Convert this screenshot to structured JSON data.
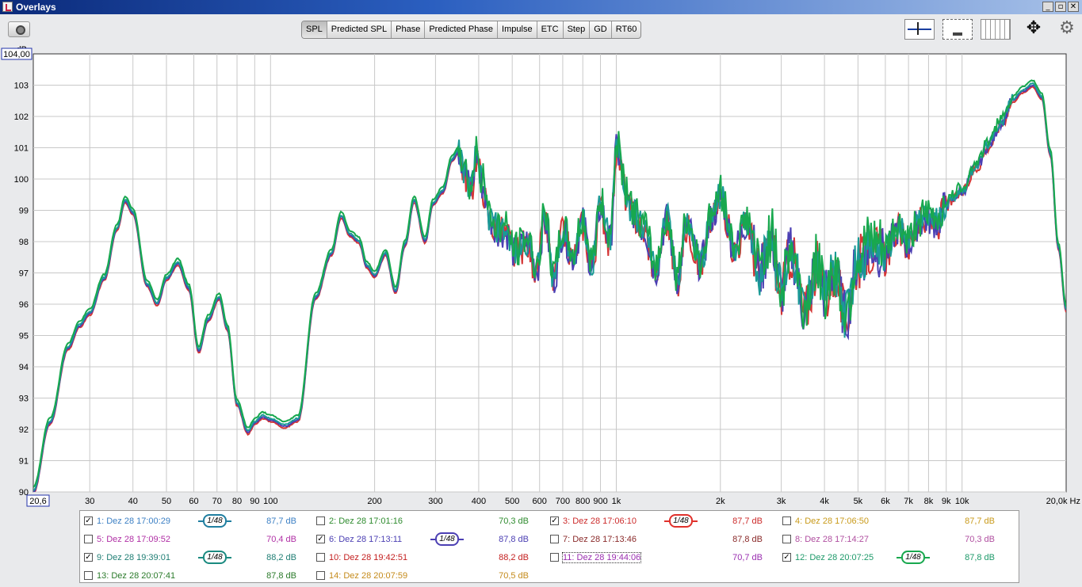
{
  "window": {
    "title": "Overlays",
    "min": "_",
    "max": "▫",
    "close": "✕"
  },
  "tabs": [
    {
      "label": "SPL",
      "active": true
    },
    {
      "label": "Predicted SPL",
      "active": false
    },
    {
      "label": "Phase",
      "active": false
    },
    {
      "label": "Predicted Phase",
      "active": false
    },
    {
      "label": "Impulse",
      "active": false
    },
    {
      "label": "ETC",
      "active": false
    },
    {
      "label": "Step",
      "active": false
    },
    {
      "label": "GD",
      "active": false
    },
    {
      "label": "RT60",
      "active": false
    }
  ],
  "icons": {
    "camera": "camera-icon",
    "levels": "adjust-levels-icon",
    "fit": "fit-to-window-icon",
    "grid": "grid-icon",
    "move": "move-arrows-icon",
    "gear": "gear-icon",
    "move_glyph": "✥",
    "gear_glyph": "⚙"
  },
  "chart_data": {
    "type": "line",
    "ylabel": "dB",
    "ylim": [
      90,
      104
    ],
    "y_top_readout": "104,00",
    "x_left_readout": "20,6",
    "x_right_readout": "20,0k Hz",
    "xlim": [
      20.6,
      20000
    ],
    "x_scale": "log",
    "grid": true,
    "yticks": [
      {
        "v": 90,
        "label": "90"
      },
      {
        "v": 91,
        "label": "91"
      },
      {
        "v": 92,
        "label": "92"
      },
      {
        "v": 93,
        "label": "93"
      },
      {
        "v": 94,
        "label": "94"
      },
      {
        "v": 95,
        "label": "95"
      },
      {
        "v": 96,
        "label": "96"
      },
      {
        "v": 97,
        "label": "97"
      },
      {
        "v": 98,
        "label": "98"
      },
      {
        "v": 99,
        "label": "99"
      },
      {
        "v": 100,
        "label": "100"
      },
      {
        "v": 101,
        "label": "101"
      },
      {
        "v": 102,
        "label": "102"
      },
      {
        "v": 103,
        "label": "103"
      }
    ],
    "xticks": [
      {
        "v": 30,
        "label": "30"
      },
      {
        "v": 40,
        "label": "40"
      },
      {
        "v": 50,
        "label": "50"
      },
      {
        "v": 60,
        "label": "60"
      },
      {
        "v": 70,
        "label": "70"
      },
      {
        "v": 80,
        "label": "80"
      },
      {
        "v": 90,
        "label": "90"
      },
      {
        "v": 100,
        "label": "100"
      },
      {
        "v": 200,
        "label": "200"
      },
      {
        "v": 300,
        "label": "300"
      },
      {
        "v": 400,
        "label": "400"
      },
      {
        "v": 500,
        "label": "500"
      },
      {
        "v": 600,
        "label": "600"
      },
      {
        "v": 700,
        "label": "700"
      },
      {
        "v": 800,
        "label": "800"
      },
      {
        "v": 900,
        "label": "900"
      },
      {
        "v": 1000,
        "label": "1k"
      },
      {
        "v": 2000,
        "label": "2k"
      },
      {
        "v": 3000,
        "label": "3k"
      },
      {
        "v": 4000,
        "label": "4k"
      },
      {
        "v": 5000,
        "label": "5k"
      },
      {
        "v": 6000,
        "label": "6k"
      },
      {
        "v": 7000,
        "label": "7k"
      },
      {
        "v": 8000,
        "label": "8k"
      },
      {
        "v": 9000,
        "label": "9k"
      },
      {
        "v": 10000,
        "label": "10k"
      }
    ],
    "base_curve": {
      "x": [
        20.6,
        23,
        26,
        28,
        30,
        33,
        36,
        38,
        40,
        44,
        47,
        50,
        54,
        58,
        62,
        66,
        71,
        75,
        80,
        86,
        90,
        95,
        100,
        110,
        120,
        135,
        150,
        160,
        170,
        180,
        190,
        200,
        215,
        230,
        245,
        260,
        280,
        295,
        315,
        335,
        350,
        365,
        380,
        395,
        410,
        430,
        450,
        480,
        510,
        550,
        590,
        620,
        660,
        700,
        750,
        800,
        850,
        900,
        960,
        1000,
        1100,
        1200,
        1300,
        1400,
        1500,
        1600,
        1750,
        1900,
        2000,
        2200,
        2400,
        2600,
        2800,
        3000,
        3200,
        3500,
        3800,
        4000,
        4300,
        4600,
        5000,
        5500,
        6000,
        6500,
        7000,
        7500,
        8000,
        8500,
        9000,
        10000,
        11000,
        12000,
        13000,
        14000,
        15000,
        16000,
        17000,
        18000,
        19000,
        20000
      ],
      "y": [
        90.0,
        92.2,
        94.6,
        95.3,
        95.7,
        96.8,
        98.4,
        99.3,
        98.9,
        96.6,
        96.0,
        96.8,
        97.3,
        96.5,
        94.5,
        95.5,
        96.2,
        95.2,
        92.8,
        91.9,
        92.2,
        92.4,
        92.3,
        92.1,
        92.3,
        96.2,
        97.6,
        98.8,
        98.2,
        98.0,
        97.2,
        96.9,
        97.6,
        96.4,
        97.9,
        99.3,
        98.0,
        99.2,
        99.6,
        100.6,
        100.9,
        100.2,
        99.6,
        100.8,
        99.8,
        98.7,
        98.4,
        98.3,
        97.6,
        98.0,
        97.1,
        98.7,
        96.8,
        98.3,
        97.5,
        98.6,
        97.2,
        99.1,
        98.0,
        100.9,
        99.0,
        98.4,
        97.1,
        98.7,
        96.8,
        98.5,
        97.3,
        98.8,
        99.4,
        97.8,
        98.6,
        97.0,
        98.1,
        96.4,
        97.7,
        95.8,
        97.2,
        96.3,
        97.0,
        95.6,
        97.4,
        97.8,
        97.6,
        98.4,
        97.9,
        98.6,
        98.7,
        98.6,
        99.2,
        99.6,
        100.4,
        101.1,
        101.8,
        102.5,
        102.8,
        103.0,
        102.6,
        100.8,
        97.8,
        95.8
      ]
    },
    "series": [
      {
        "name": "1: Dez 28 17:00:29",
        "color": "#d43535",
        "offset": -0.05,
        "noise": 0.55,
        "seed": 3
      },
      {
        "name": "6: Dez 28 17:13:11",
        "color": "#4b3fb3",
        "offset": 0.0,
        "noise": 0.55,
        "seed": 7
      },
      {
        "name": "9: Dez 28 19:39:01",
        "color": "#1a9a96",
        "offset": 0.05,
        "noise": 0.5,
        "seed": 11
      },
      {
        "name": "12: Dez 28 20:07:25",
        "color": "#18a84e",
        "offset": 0.15,
        "noise": 0.6,
        "seed": 19
      }
    ],
    "legend_placement": "bottom"
  },
  "legend": {
    "items": [
      {
        "label": "1: Dez 28 17:00:29",
        "value": "87,7 dB",
        "checked": true,
        "check": "✓",
        "color": "#3b7fc4",
        "smoothing": "1/48",
        "smooth_color": "#1f7ea0"
      },
      {
        "label": "2: Dez 28 17:01:16",
        "value": "70,3 dB",
        "checked": false,
        "check": "",
        "color": "#2e8b2e",
        "smoothing": "",
        "smooth_color": ""
      },
      {
        "label": "3: Dez 28 17:06:10",
        "value": "87,7 dB",
        "checked": true,
        "check": "✓",
        "color": "#cc2b2b",
        "smoothing": "1/48",
        "smooth_color": "#e0302b"
      },
      {
        "label": "4: Dez 28 17:06:50",
        "value": "87,7 dB",
        "checked": false,
        "check": "",
        "color": "#c99a1a",
        "smoothing": "",
        "smooth_color": ""
      },
      {
        "label": "5: Dez 28 17:09:52",
        "value": "70,4 dB",
        "checked": false,
        "check": "",
        "color": "#b02fa5",
        "smoothing": "",
        "smooth_color": ""
      },
      {
        "label": "6: Dez 28 17:13:11",
        "value": "87,8 dB",
        "checked": true,
        "check": "✓",
        "color": "#4b3fb3",
        "smoothing": "1/48",
        "smooth_color": "#4b3fb3"
      },
      {
        "label": "7: Dez 28 17:13:46",
        "value": "87,8 dB",
        "checked": false,
        "check": "",
        "color": "#8a2a2a",
        "smoothing": "",
        "smooth_color": ""
      },
      {
        "label": "8: Dez 28 17:14:27",
        "value": "70,3 dB",
        "checked": false,
        "check": "",
        "color": "#b04fa0",
        "smoothing": "",
        "smooth_color": ""
      },
      {
        "label": "9: Dez 28 19:39:01",
        "value": "88,2 dB",
        "checked": true,
        "check": "✓",
        "color": "#1f7e74",
        "smoothing": "1/48",
        "smooth_color": "#1a8a80"
      },
      {
        "label": "10: Dez 28 19:42:51",
        "value": "88,2 dB",
        "checked": false,
        "check": "",
        "color": "#c42020",
        "smoothing": "",
        "smooth_color": ""
      },
      {
        "label": "11: Dez 28 19:44:06",
        "value": "70,7 dB",
        "checked": false,
        "check": "",
        "color": "#9a2fb0",
        "smoothing": "",
        "smooth_color": ""
      },
      {
        "label": "12: Dez 28 20:07:25",
        "value": "87,8 dB",
        "checked": true,
        "check": "✓",
        "color": "#1e9a6a",
        "smoothing": "1/48",
        "smooth_color": "#18a84e"
      },
      {
        "label": "13: Dez 28 20:07:41",
        "value": "87,8 dB",
        "checked": false,
        "check": "",
        "color": "#2a7a2a",
        "smoothing": "",
        "smooth_color": ""
      },
      {
        "label": "14: Dez 28 20:07:59",
        "value": "70,5 dB",
        "checked": false,
        "check": "",
        "color": "#c48a1a",
        "smoothing": "",
        "smooth_color": ""
      }
    ]
  }
}
